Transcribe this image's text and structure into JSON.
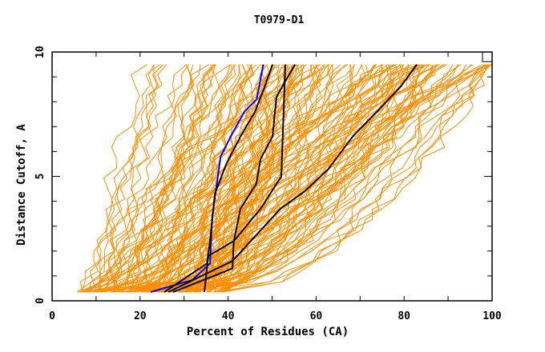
{
  "chart_data": {
    "type": "line",
    "title": "T0979-D1",
    "xlabel": "Percent of Residues (CA)",
    "ylabel": "Distance Cutoff, A",
    "xlim": [
      0,
      100
    ],
    "ylim": [
      0,
      10
    ],
    "x_ticks": [
      0,
      20,
      40,
      60,
      80,
      100
    ],
    "x_tick_labels": [
      "0",
      "20",
      "40",
      "60",
      "80",
      "100"
    ],
    "x_minor_step": 10,
    "y_ticks": [
      0,
      5,
      10
    ],
    "y_tick_labels": [
      "0",
      "5",
      "10"
    ],
    "y_minor_step": 1,
    "grid": false,
    "legend": "none",
    "colors": {
      "background_models": "#ff8c00",
      "highlight_blue": "#0000ff",
      "highlight_black": "#000000",
      "frame": "#000000"
    },
    "background_models": {
      "description": "Many GDT curves for submitted models, drawn in orange (individual values not legible)",
      "count": 150,
      "cutoff_range": [
        0.35,
        9.5
      ],
      "start_percent_range": [
        6,
        40
      ],
      "end_percent_range": [
        20,
        100
      ]
    },
    "series": [
      {
        "name": "highlight-blue",
        "color": "#0000ff",
        "points": [
          [
            22.4,
            0.35
          ],
          [
            31.9,
            0.84
          ],
          [
            35.9,
            1.5
          ],
          [
            36.4,
            3.4
          ],
          [
            38.3,
            5.8
          ],
          [
            40.6,
            6.6
          ],
          [
            43.7,
            7.6
          ],
          [
            46.5,
            8.1
          ],
          [
            48.0,
            9.5
          ]
        ]
      },
      {
        "name": "highlight-black-1",
        "color": "#000000",
        "points": [
          [
            25.5,
            0.35
          ],
          [
            35.2,
            1.5
          ],
          [
            35.9,
            2.4
          ],
          [
            37.0,
            4.3
          ],
          [
            39.6,
            5.5
          ],
          [
            42.8,
            6.6
          ],
          [
            46.1,
            7.6
          ],
          [
            48.3,
            8.6
          ],
          [
            50.1,
            9.5
          ]
        ]
      },
      {
        "name": "highlight-black-2",
        "color": "#000000",
        "points": [
          [
            34.6,
            0.35
          ],
          [
            35.5,
            1.8
          ],
          [
            41.3,
            2.4
          ],
          [
            42.8,
            3.7
          ],
          [
            46.4,
            4.7
          ],
          [
            47.4,
            5.7
          ],
          [
            50.1,
            6.6
          ],
          [
            51.0,
            8.2
          ],
          [
            55.2,
            9.5
          ]
        ]
      },
      {
        "name": "highlight-black-3",
        "color": "#000000",
        "points": [
          [
            27.5,
            0.35
          ],
          [
            41.0,
            1.3
          ],
          [
            41.3,
            2.4
          ],
          [
            47.4,
            3.7
          ],
          [
            52.1,
            5.0
          ],
          [
            53.0,
            9.5
          ]
        ]
      },
      {
        "name": "highlight-black-4",
        "color": "#000000",
        "points": [
          [
            26.4,
            0.35
          ],
          [
            41.0,
            1.6
          ],
          [
            51.9,
            3.7
          ],
          [
            57.4,
            4.4
          ],
          [
            62.8,
            5.3
          ],
          [
            68.3,
            6.6
          ],
          [
            73.8,
            7.6
          ],
          [
            79.2,
            8.6
          ],
          [
            82.9,
            9.5
          ]
        ]
      }
    ]
  }
}
